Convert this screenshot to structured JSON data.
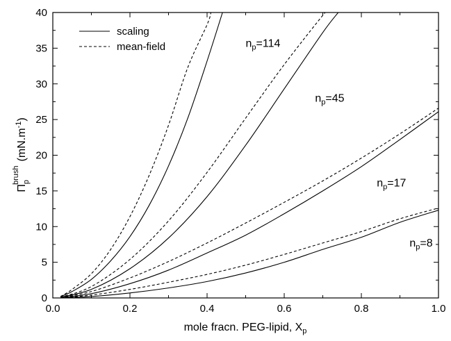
{
  "chart_data": {
    "type": "line",
    "title": "",
    "xlabel": "mole fracn. PEG-lipid, X",
    "xlabel_sub": "p",
    "ylabel_main": "Π",
    "ylabel_sub": "p",
    "ylabel_sup": "brush",
    "ylabel_unit": "(mN.m",
    "ylabel_unit_sup": "-1",
    "ylabel_unit_close": ")",
    "xlim": [
      0.0,
      1.0
    ],
    "ylim": [
      0,
      40
    ],
    "x_ticks": [
      "0.0",
      "0.2",
      "0.4",
      "0.6",
      "0.8",
      "1.0"
    ],
    "y_ticks": [
      "0",
      "5",
      "10",
      "15",
      "20",
      "25",
      "30",
      "35",
      "40"
    ],
    "grid": false,
    "legend": {
      "placement": "top-left",
      "entries": [
        {
          "label": "scaling",
          "style": "solid"
        },
        {
          "label": "mean-field",
          "style": "dashed"
        }
      ]
    },
    "curve_labels": [
      {
        "text": "n",
        "sub": "p",
        "tail": "=114",
        "x": 0.5,
        "y": 35.2
      },
      {
        "text": "n",
        "sub": "p",
        "tail": "=45",
        "x": 0.68,
        "y": 27.5
      },
      {
        "text": "n",
        "sub": "p",
        "tail": "=17",
        "x": 0.84,
        "y": 15.6
      },
      {
        "text": "n",
        "sub": "p",
        "tail": "=8",
        "x": 0.925,
        "y": 7.2
      }
    ],
    "series": [
      {
        "group": "114",
        "style": "solid",
        "x": [
          0.02,
          0.05,
          0.1,
          0.15,
          0.2,
          0.25,
          0.3,
          0.35,
          0.4,
          0.44
        ],
        "y": [
          0.2,
          0.9,
          2.6,
          5.2,
          8.6,
          13.0,
          18.5,
          25.2,
          33.2,
          40
        ]
      },
      {
        "group": "114",
        "style": "dashed",
        "x": [
          0.02,
          0.05,
          0.1,
          0.15,
          0.2,
          0.25,
          0.3,
          0.35,
          0.4,
          0.41
        ],
        "y": [
          0.2,
          1.2,
          3.4,
          6.8,
          11.4,
          17.2,
          24.2,
          32.3,
          38.3,
          40
        ]
      },
      {
        "group": "45",
        "style": "solid",
        "x": [
          0.02,
          0.1,
          0.2,
          0.3,
          0.4,
          0.5,
          0.6,
          0.7,
          0.74
        ],
        "y": [
          0.1,
          1.2,
          4.1,
          8.4,
          14.2,
          21.4,
          29.3,
          37.2,
          40
        ]
      },
      {
        "group": "45",
        "style": "dashed",
        "x": [
          0.02,
          0.1,
          0.2,
          0.3,
          0.4,
          0.5,
          0.6,
          0.7,
          0.71
        ],
        "y": [
          0.1,
          1.6,
          5.4,
          10.8,
          17.6,
          25.2,
          32.7,
          39.6,
          40
        ]
      },
      {
        "group": "17",
        "style": "solid",
        "x": [
          0.02,
          0.1,
          0.2,
          0.3,
          0.4,
          0.5,
          0.6,
          0.7,
          0.8,
          0.9,
          1.0
        ],
        "y": [
          0.05,
          0.6,
          2.0,
          3.9,
          6.3,
          8.8,
          11.8,
          15.0,
          18.4,
          22.2,
          26.1
        ]
      },
      {
        "group": "17",
        "style": "dashed",
        "x": [
          0.02,
          0.1,
          0.2,
          0.3,
          0.4,
          0.5,
          0.6,
          0.7,
          0.8,
          0.9,
          1.0
        ],
        "y": [
          0.05,
          0.9,
          2.8,
          5.1,
          7.7,
          10.5,
          13.4,
          16.4,
          19.6,
          23.0,
          26.6
        ]
      },
      {
        "group": "8",
        "style": "solid",
        "x": [
          0.02,
          0.1,
          0.2,
          0.3,
          0.4,
          0.5,
          0.6,
          0.7,
          0.8,
          0.9,
          1.0
        ],
        "y": [
          0.02,
          0.2,
          0.7,
          1.4,
          2.3,
          3.5,
          5.0,
          6.8,
          8.5,
          10.6,
          12.3
        ]
      },
      {
        "group": "8",
        "style": "dashed",
        "x": [
          0.02,
          0.1,
          0.2,
          0.3,
          0.4,
          0.5,
          0.6,
          0.7,
          0.8,
          0.9,
          1.0
        ],
        "y": [
          0.02,
          0.4,
          1.2,
          2.2,
          3.3,
          4.6,
          6.1,
          7.7,
          9.3,
          11.1,
          12.6
        ]
      }
    ]
  }
}
